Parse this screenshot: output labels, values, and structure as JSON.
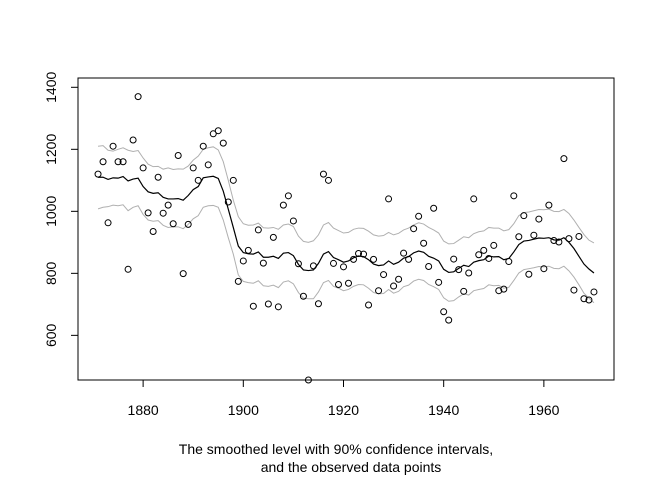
{
  "chart_data": {
    "type": "line",
    "title": "",
    "xlabel": "",
    "ylabel": "",
    "caption_lines": [
      "The smoothed level with 90% confidence intervals,",
      "and the observed data points"
    ],
    "xlim": [
      1867,
      1974
    ],
    "ylim": [
      456,
      1430
    ],
    "x_ticks": [
      1880,
      1900,
      1920,
      1940,
      1960
    ],
    "y_ticks": [
      600,
      800,
      1000,
      1200,
      1400
    ],
    "grid": false,
    "legend": "none",
    "colors": {
      "level": "#000000",
      "ci": "#b0b0b0",
      "points": "#000000",
      "axis": "#000000"
    },
    "series": [
      {
        "role": "observed",
        "style": "points",
        "x": [
          1871,
          1872,
          1873,
          1874,
          1875,
          1876,
          1877,
          1878,
          1879,
          1880,
          1881,
          1882,
          1883,
          1884,
          1885,
          1886,
          1887,
          1888,
          1889,
          1890,
          1891,
          1892,
          1893,
          1894,
          1895,
          1896,
          1897,
          1898,
          1899,
          1900,
          1901,
          1902,
          1903,
          1904,
          1905,
          1906,
          1907,
          1908,
          1909,
          1910,
          1911,
          1912,
          1913,
          1914,
          1915,
          1916,
          1917,
          1918,
          1919,
          1920,
          1921,
          1922,
          1923,
          1924,
          1925,
          1926,
          1927,
          1928,
          1929,
          1930,
          1931,
          1932,
          1933,
          1934,
          1935,
          1936,
          1937,
          1938,
          1939,
          1940,
          1941,
          1942,
          1943,
          1944,
          1945,
          1946,
          1947,
          1948,
          1949,
          1950,
          1951,
          1952,
          1953,
          1954,
          1955,
          1956,
          1957,
          1958,
          1959,
          1960,
          1961,
          1962,
          1963,
          1964,
          1965,
          1966,
          1967,
          1968,
          1969,
          1970
        ],
        "y": [
          1120,
          1160,
          963,
          1210,
          1160,
          1160,
          813,
          1230,
          1370,
          1140,
          995,
          935,
          1110,
          994,
          1020,
          960,
          1180,
          799,
          958,
          1140,
          1100,
          1210,
          1150,
          1250,
          1260,
          1220,
          1030,
          1100,
          774,
          840,
          874,
          694,
          940,
          833,
          701,
          916,
          692,
          1020,
          1050,
          969,
          831,
          726,
          456,
          824,
          702,
          1120,
          1100,
          832,
          764,
          821,
          768,
          845,
          864,
          862,
          698,
          845,
          744,
          796,
          1040,
          759,
          781,
          865,
          845,
          944,
          984,
          897,
          822,
          1010,
          771,
          676,
          649,
          846,
          812,
          742,
          801,
          1040,
          860,
          874,
          848,
          890,
          744,
          749,
          838,
          1050,
          918,
          986,
          797,
          923,
          975,
          815,
          1020,
          906,
          901,
          1170,
          912,
          746,
          919,
          718,
          714,
          740
        ]
      },
      {
        "role": "smoothed-level",
        "style": "line",
        "x": [
          1871,
          1872,
          1873,
          1874,
          1875,
          1876,
          1877,
          1878,
          1879,
          1880,
          1881,
          1882,
          1883,
          1884,
          1885,
          1886,
          1887,
          1888,
          1889,
          1890,
          1891,
          1892,
          1893,
          1894,
          1895,
          1896,
          1897,
          1898,
          1899,
          1900,
          1901,
          1902,
          1903,
          1904,
          1905,
          1906,
          1907,
          1908,
          1909,
          1910,
          1911,
          1912,
          1913,
          1914,
          1915,
          1916,
          1917,
          1918,
          1919,
          1920,
          1921,
          1922,
          1923,
          1924,
          1925,
          1926,
          1927,
          1928,
          1929,
          1930,
          1931,
          1932,
          1933,
          1934,
          1935,
          1936,
          1937,
          1938,
          1939,
          1940,
          1941,
          1942,
          1943,
          1944,
          1945,
          1946,
          1947,
          1948,
          1949,
          1950,
          1951,
          1952,
          1953,
          1954,
          1955,
          1956,
          1957,
          1958,
          1959,
          1960,
          1961,
          1962,
          1963,
          1964,
          1965,
          1966,
          1967,
          1968,
          1969,
          1970
        ],
        "y": [
          1110,
          1110,
          1103,
          1108,
          1107,
          1112,
          1098,
          1104,
          1107,
          1080,
          1063,
          1058,
          1060,
          1045,
          1040,
          1040,
          1041,
          1036,
          1051,
          1070,
          1080,
          1108,
          1111,
          1113,
          1106,
          1065,
          1007,
          948,
          888,
          867,
          863,
          862,
          869,
          852,
          852,
          855,
          848,
          865,
          867,
          857,
          829,
          811,
          809,
          811,
          832,
          862,
          870,
          851,
          844,
          836,
          840,
          850,
          856,
          854,
          844,
          830,
          825,
          827,
          840,
          829,
          836,
          849,
          854,
          866,
          872,
          868,
          855,
          849,
          840,
          813,
          803,
          805,
          816,
          826,
          822,
          836,
          841,
          844,
          856,
          853,
          854,
          844,
          848,
          869,
          893,
          904,
          906,
          910,
          914,
          913,
          915,
          908,
          907,
          915,
          900,
          880,
          855,
          830,
          814,
          801
        ]
      },
      {
        "role": "ci-upper",
        "style": "line",
        "x": [
          1871,
          1872,
          1873,
          1874,
          1875,
          1876,
          1877,
          1878,
          1879,
          1880,
          1881,
          1882,
          1883,
          1884,
          1885,
          1886,
          1887,
          1888,
          1889,
          1890,
          1891,
          1892,
          1893,
          1894,
          1895,
          1896,
          1897,
          1898,
          1899,
          1900,
          1901,
          1902,
          1903,
          1904,
          1905,
          1906,
          1907,
          1908,
          1909,
          1910,
          1911,
          1912,
          1913,
          1914,
          1915,
          1916,
          1917,
          1918,
          1919,
          1920,
          1921,
          1922,
          1923,
          1924,
          1925,
          1926,
          1927,
          1928,
          1929,
          1930,
          1931,
          1932,
          1933,
          1934,
          1935,
          1936,
          1937,
          1938,
          1939,
          1940,
          1941,
          1942,
          1943,
          1944,
          1945,
          1946,
          1947,
          1948,
          1949,
          1950,
          1951,
          1952,
          1953,
          1954,
          1955,
          1956,
          1957,
          1958,
          1959,
          1960,
          1961,
          1962,
          1963,
          1964,
          1965,
          1966,
          1967,
          1968,
          1969,
          1970
        ],
        "y": [
          1210,
          1212,
          1197,
          1194,
          1200,
          1205,
          1197,
          1193,
          1196,
          1172,
          1152,
          1144,
          1145,
          1136,
          1140,
          1135,
          1137,
          1136,
          1146,
          1165,
          1178,
          1200,
          1205,
          1208,
          1198,
          1160,
          1100,
          1036,
          983,
          960,
          955,
          956,
          962,
          947,
          946,
          948,
          942,
          956,
          959,
          951,
          920,
          903,
          900,
          905,
          924,
          956,
          964,
          946,
          938,
          930,
          932,
          942,
          946,
          945,
          936,
          924,
          920,
          922,
          932,
          924,
          929,
          940,
          946,
          956,
          963,
          959,
          948,
          940,
          930,
          904,
          895,
          896,
          907,
          918,
          915,
          928,
          934,
          937,
          948,
          946,
          946,
          937,
          941,
          960,
          986,
          996,
          998,
          1002,
          1006,
          1005,
          1007,
          1000,
          999,
          1006,
          993,
          972,
          948,
          925,
          907,
          898
        ]
      },
      {
        "role": "ci-lower",
        "style": "line",
        "x": [
          1871,
          1872,
          1873,
          1874,
          1875,
          1876,
          1877,
          1878,
          1879,
          1880,
          1881,
          1882,
          1883,
          1884,
          1885,
          1886,
          1887,
          1888,
          1889,
          1890,
          1891,
          1892,
          1893,
          1894,
          1895,
          1896,
          1897,
          1898,
          1899,
          1900,
          1901,
          1902,
          1903,
          1904,
          1905,
          1906,
          1907,
          1908,
          1909,
          1910,
          1911,
          1912,
          1913,
          1914,
          1915,
          1916,
          1917,
          1918,
          1919,
          1920,
          1921,
          1922,
          1923,
          1924,
          1925,
          1926,
          1927,
          1928,
          1929,
          1930,
          1931,
          1932,
          1933,
          1934,
          1935,
          1936,
          1937,
          1938,
          1939,
          1940,
          1941,
          1942,
          1943,
          1944,
          1945,
          1946,
          1947,
          1948,
          1949,
          1950,
          1951,
          1952,
          1953,
          1954,
          1955,
          1956,
          1957,
          1958,
          1959,
          1960,
          1961,
          1962,
          1963,
          1964,
          1965,
          1966,
          1967,
          1968,
          1969,
          1970
        ],
        "y": [
          1008,
          1013,
          1015,
          1020,
          1018,
          1021,
          1002,
          1013,
          1018,
          990,
          972,
          968,
          970,
          955,
          948,
          950,
          950,
          944,
          958,
          976,
          986,
          1013,
          1018,
          1019,
          1013,
          972,
          915,
          862,
          795,
          774,
          770,
          768,
          776,
          760,
          758,
          762,
          754,
          772,
          776,
          766,
          738,
          720,
          718,
          718,
          740,
          770,
          777,
          758,
          752,
          744,
          748,
          758,
          764,
          763,
          752,
          738,
          734,
          735,
          748,
          736,
          742,
          757,
          762,
          775,
          781,
          777,
          764,
          757,
          748,
          721,
          710,
          712,
          724,
          734,
          730,
          744,
          748,
          751,
          763,
          760,
          761,
          752,
          755,
          777,
          801,
          812,
          815,
          818,
          822,
          821,
          823,
          816,
          815,
          823,
          808,
          788,
          763,
          736,
          720,
          705
        ]
      }
    ]
  }
}
